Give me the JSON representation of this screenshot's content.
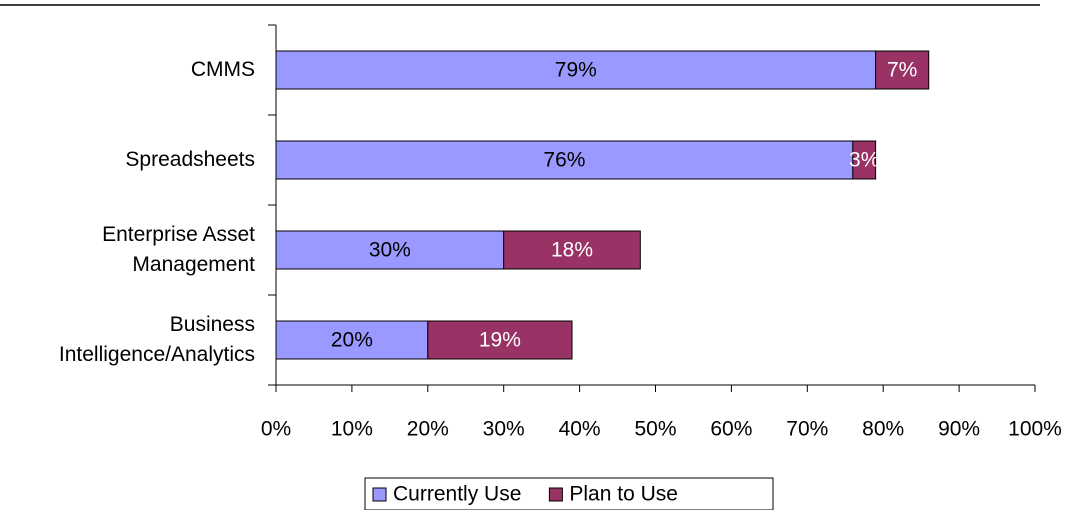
{
  "chart_data": {
    "type": "stacked-barh",
    "categories": [
      "CMMS",
      "Spreadsheets",
      "Enterprise Asset\nManagement",
      "Business\nIntelligence/Analytics"
    ],
    "series": [
      {
        "name": "Currently Use",
        "color": "#9999ff",
        "values": [
          79,
          76,
          30,
          20
        ],
        "value_labels": [
          "79%",
          "76%",
          "30%",
          "20%"
        ],
        "label_color": "#000000"
      },
      {
        "name": "Plan to Use",
        "color": "#993366",
        "values": [
          7,
          3,
          18,
          19
        ],
        "value_labels": [
          "7%",
          "3%",
          "18%",
          "19%"
        ],
        "label_color": "#ffffff"
      }
    ],
    "xlim": [
      0,
      100
    ],
    "xticks": [
      {
        "value": 0,
        "label": "0%"
      },
      {
        "value": 10,
        "label": "10%"
      },
      {
        "value": 20,
        "label": "20%"
      },
      {
        "value": 30,
        "label": "30%"
      },
      {
        "value": 40,
        "label": "40%"
      },
      {
        "value": 50,
        "label": "50%"
      },
      {
        "value": 60,
        "label": "60%"
      },
      {
        "value": 70,
        "label": "70%"
      },
      {
        "value": 80,
        "label": "80%"
      },
      {
        "value": 90,
        "label": "90%"
      },
      {
        "value": 100,
        "label": "100%"
      }
    ],
    "legend": "bottom"
  }
}
